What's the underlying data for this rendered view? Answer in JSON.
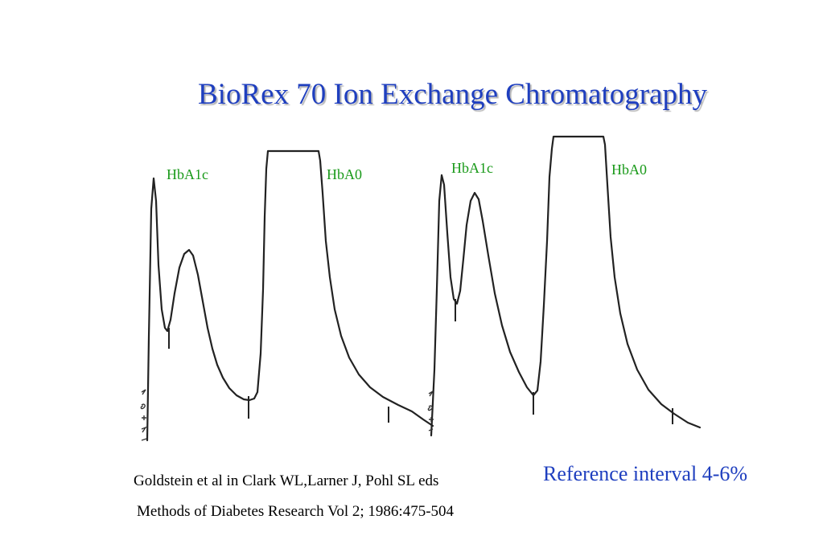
{
  "title": "BioRex 70 Ion Exchange Chromatography",
  "chart_data": [
    {
      "type": "line",
      "peaks": [
        {
          "name": "HbA1c",
          "label_color": "#1a9a1a"
        },
        {
          "name": "HbA0",
          "label_color": "#1a9a1a",
          "off_scale": true
        }
      ]
    },
    {
      "type": "line",
      "peaks": [
        {
          "name": "HbA1c",
          "label_color": "#1a9a1a"
        },
        {
          "name": "HbA0",
          "label_color": "#1a9a1a",
          "off_scale": true
        }
      ]
    }
  ],
  "labels": {
    "left_hba1c": "HbA1c",
    "left_hba0": "HbA0",
    "right_hba1c": "HbA1c",
    "right_hba0": "HbA0"
  },
  "citation": {
    "line1": "Goldstein et al in  Clark WL,Larner J, Pohl SL eds",
    "line2": "Methods of Diabetes Research Vol 2; 1986:475-504"
  },
  "reference": "Reference interval 4-6%",
  "colors": {
    "title": "#1f3fbf",
    "peak_labels": "#1a9a1a",
    "reference": "#1f3fbf",
    "trace": "#222222"
  }
}
